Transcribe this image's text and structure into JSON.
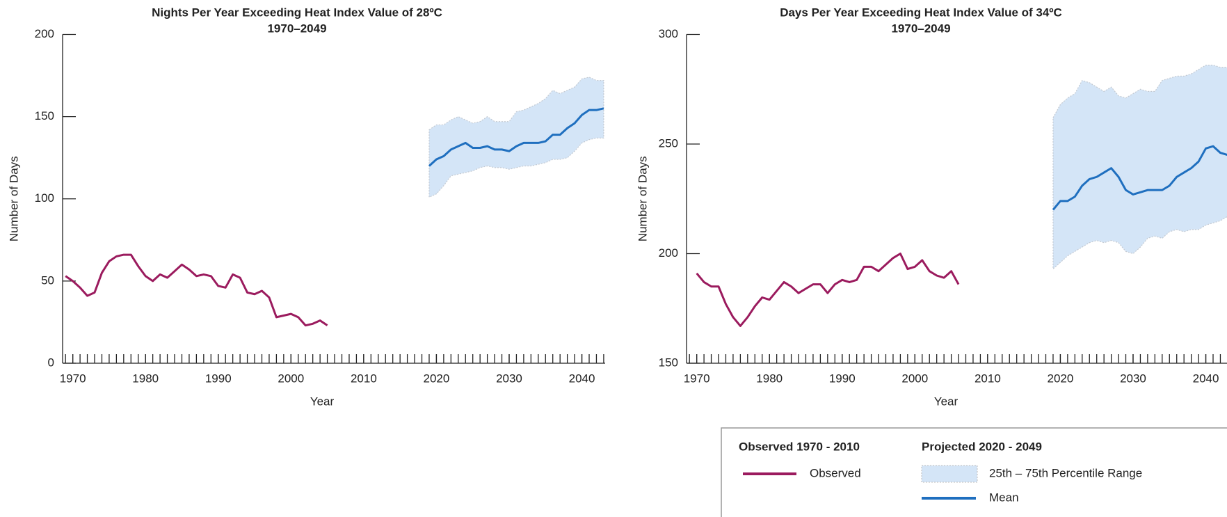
{
  "chart_data": [
    {
      "type": "line",
      "title": "Nights Per Year Exceeding Heat Index Value of 28ºC",
      "subtitle": "1970–2049",
      "x_label": "Year",
      "y_label": "Number of Days",
      "xlim": [
        1968.6,
        2043.2
      ],
      "xticks": [
        1970,
        1980,
        1990,
        2000,
        2010,
        2020,
        2030,
        2040
      ],
      "ylim": [
        0,
        200
      ],
      "yticks": [
        0,
        50,
        100,
        150,
        200
      ],
      "series": [
        {
          "name": "Observed",
          "color": "#9b1b5e",
          "x": [
            1969,
            1970,
            1971,
            1972,
            1973,
            1974,
            1975,
            1976,
            1977,
            1978,
            1979,
            1980,
            1981,
            1982,
            1983,
            1984,
            1985,
            1986,
            1987,
            1988,
            1989,
            1990,
            1991,
            1992,
            1993,
            1994,
            1995,
            1996,
            1997,
            1998,
            1999,
            2000,
            2001,
            2002,
            2003,
            2004,
            2005
          ],
          "values": [
            53,
            50,
            46,
            41,
            43,
            55,
            62,
            65,
            66,
            66,
            59,
            53,
            50,
            54,
            52,
            56,
            60,
            57,
            53,
            54,
            53,
            47,
            46,
            54,
            52,
            43,
            42,
            44,
            40,
            28,
            29,
            30,
            28,
            23,
            24,
            26,
            23
          ]
        },
        {
          "name": "Mean",
          "color": "#1f6fbf",
          "x": [
            2019,
            2020,
            2021,
            2022,
            2023,
            2024,
            2025,
            2026,
            2027,
            2028,
            2029,
            2030,
            2031,
            2032,
            2033,
            2034,
            2035,
            2036,
            2037,
            2038,
            2039,
            2040,
            2041,
            2042,
            2043
          ],
          "values": [
            120,
            124,
            126,
            130,
            132,
            134,
            131,
            131,
            132,
            130,
            130,
            129,
            132,
            134,
            134,
            134,
            135,
            139,
            139,
            143,
            146,
            151,
            154,
            154,
            155
          ]
        }
      ],
      "band": {
        "name": "25th – 75th Percentile Range",
        "color": "#d4e5f7",
        "x": [
          2019,
          2020,
          2021,
          2022,
          2023,
          2024,
          2025,
          2026,
          2027,
          2028,
          2029,
          2030,
          2031,
          2032,
          2033,
          2034,
          2035,
          2036,
          2037,
          2038,
          2039,
          2040,
          2041,
          2042,
          2043
        ],
        "lower": [
          101,
          103,
          108,
          114,
          115,
          116,
          117,
          119,
          120,
          119,
          119,
          118,
          119,
          120,
          120,
          121,
          122,
          124,
          124,
          125,
          129,
          134,
          136,
          137,
          137
        ],
        "upper": [
          142,
          145,
          145,
          148,
          150,
          148,
          146,
          147,
          150,
          147,
          147,
          147,
          153,
          154,
          156,
          158,
          161,
          166,
          164,
          166,
          168,
          173,
          174,
          172,
          172
        ]
      }
    },
    {
      "type": "line",
      "title": "Days Per Year Exceeding Heat Index Value of 34ºC",
      "subtitle": "1970–2049",
      "x_label": "Year",
      "y_label": "Number of Days",
      "xlim": [
        1968.6,
        2043.2
      ],
      "xticks": [
        1970,
        1980,
        1990,
        2000,
        2010,
        2020,
        2030,
        2040
      ],
      "ylim": [
        150,
        300
      ],
      "yticks": [
        150,
        200,
        250,
        300
      ],
      "series": [
        {
          "name": "Observed",
          "color": "#9b1b5e",
          "x": [
            1970,
            1971,
            1972,
            1973,
            1974,
            1975,
            1976,
            1977,
            1978,
            1979,
            1980,
            1981,
            1982,
            1983,
            1984,
            1985,
            1986,
            1987,
            1988,
            1989,
            1990,
            1991,
            1992,
            1993,
            1994,
            1995,
            1996,
            1997,
            1998,
            1999,
            2000,
            2001,
            2002,
            2003,
            2004,
            2005,
            2006
          ],
          "values": [
            191,
            187,
            185,
            185,
            177,
            171,
            167,
            171,
            176,
            180,
            179,
            183,
            187,
            185,
            182,
            184,
            186,
            186,
            182,
            186,
            188,
            187,
            188,
            194,
            194,
            192,
            195,
            198,
            200,
            193,
            194,
            197,
            192,
            190,
            189,
            192,
            186
          ]
        },
        {
          "name": "Mean",
          "color": "#1f6fbf",
          "x": [
            2019,
            2020,
            2021,
            2022,
            2023,
            2024,
            2025,
            2026,
            2027,
            2028,
            2029,
            2030,
            2031,
            2032,
            2033,
            2034,
            2035,
            2036,
            2037,
            2038,
            2039,
            2040,
            2041,
            2042,
            2043
          ],
          "values": [
            220,
            224,
            224,
            226,
            231,
            234,
            235,
            237,
            239,
            235,
            229,
            227,
            228,
            229,
            229,
            229,
            231,
            235,
            237,
            239,
            242,
            248,
            249,
            246,
            245
          ]
        }
      ],
      "band": {
        "name": "25th – 75th Percentile Range",
        "color": "#d4e5f7",
        "x": [
          2019,
          2020,
          2021,
          2022,
          2023,
          2024,
          2025,
          2026,
          2027,
          2028,
          2029,
          2030,
          2031,
          2032,
          2033,
          2034,
          2035,
          2036,
          2037,
          2038,
          2039,
          2040,
          2041,
          2042,
          2043
        ],
        "lower": [
          193,
          196,
          199,
          201,
          203,
          205,
          206,
          205,
          206,
          205,
          201,
          200,
          203,
          207,
          208,
          207,
          210,
          211,
          210,
          211,
          211,
          213,
          214,
          215,
          217
        ],
        "upper": [
          262,
          268,
          271,
          273,
          279,
          278,
          276,
          274,
          276,
          272,
          271,
          273,
          275,
          274,
          274,
          279,
          280,
          281,
          281,
          282,
          284,
          286,
          286,
          285,
          285
        ]
      }
    }
  ],
  "legend": {
    "observed_title": "Observed 1970 - 2010",
    "projected_title": "Projected 2020 - 2049"
  }
}
